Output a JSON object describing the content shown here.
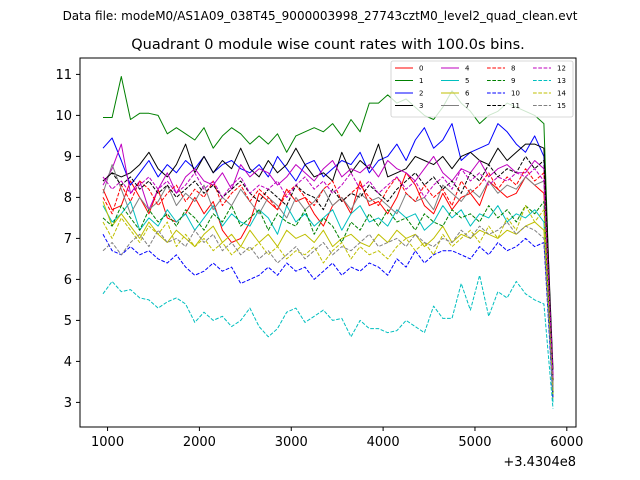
{
  "chart_data": {
    "type": "line",
    "suptitle": "Data file: modeM0/AS1A09_038T45_9000003998_27743cztM0_level2_quad_clean.evt",
    "title": "Quadrant 0 module wise count rates with 100.0s bins.",
    "xlabel": "",
    "ylabel": "",
    "x_offset_label": "+3.4304e8",
    "xlim": [
      700,
      6100
    ],
    "ylim": [
      2.4,
      11.4
    ],
    "xticks": [
      1000,
      2000,
      3000,
      4000,
      5000,
      6000
    ],
    "xtick_labels": [
      "1000",
      "2000",
      "3000",
      "4000",
      "5000",
      "6000"
    ],
    "yticks": [
      3,
      4,
      5,
      6,
      7,
      8,
      9,
      10,
      11
    ],
    "ytick_labels": [
      "3",
      "4",
      "5",
      "6",
      "7",
      "8",
      "9",
      "10",
      "11"
    ],
    "legend_position": "top-right",
    "x": [
      950,
      1050,
      1150,
      1250,
      1350,
      1450,
      1550,
      1650,
      1750,
      1850,
      1950,
      2050,
      2150,
      2250,
      2350,
      2450,
      2550,
      2650,
      2750,
      2850,
      2950,
      3050,
      3150,
      3250,
      3350,
      3450,
      3550,
      3650,
      3750,
      3850,
      3950,
      4050,
      4150,
      4250,
      4350,
      4450,
      4550,
      4650,
      4750,
      4850,
      4950,
      5050,
      5150,
      5250,
      5350,
      5450,
      5550,
      5650,
      5750,
      5850
    ],
    "series": [
      {
        "name": "0",
        "color": "#ff0000",
        "dash": "solid",
        "values": [
          8.2,
          7.7,
          7.8,
          8.4,
          8.0,
          7.6,
          8.2,
          7.5,
          7.4,
          7.6,
          8.0,
          7.6,
          7.9,
          7.2,
          6.9,
          7.0,
          7.4,
          8.1,
          7.9,
          7.7,
          8.2,
          7.9,
          8.0,
          7.6,
          7.3,
          7.8,
          8.0,
          7.6,
          8.4,
          7.8,
          7.9,
          7.6,
          8.0,
          8.6,
          8.3,
          7.8,
          7.6,
          8.1,
          7.7,
          8.0,
          8.1,
          7.8,
          8.4,
          8.2,
          8.0,
          8.1,
          8.5,
          8.3,
          8.1,
          3.4
        ]
      },
      {
        "name": "1",
        "color": "#008000",
        "dash": "solid",
        "values": [
          9.95,
          9.95,
          10.95,
          9.9,
          10.05,
          10.05,
          10.0,
          9.55,
          9.7,
          9.55,
          9.4,
          9.7,
          9.2,
          9.5,
          9.7,
          9.55,
          9.3,
          9.5,
          9.3,
          9.55,
          9.1,
          9.5,
          9.6,
          9.7,
          9.6,
          9.8,
          9.5,
          9.9,
          9.6,
          10.3,
          10.3,
          10.5,
          10.3,
          10.4,
          10.2,
          10.0,
          9.9,
          10.2,
          10.6,
          10.3,
          10.1,
          9.8,
          10.0,
          10.1,
          10.3,
          10.2,
          10.1,
          10.0,
          9.8,
          3.2
        ]
      },
      {
        "name": "2",
        "color": "#0000ff",
        "dash": "solid",
        "values": [
          9.2,
          9.45,
          8.9,
          8.3,
          8.6,
          8.9,
          8.5,
          8.8,
          8.6,
          8.9,
          8.7,
          9.0,
          8.6,
          8.8,
          8.9,
          8.7,
          8.6,
          8.8,
          8.5,
          9.0,
          8.7,
          8.4,
          8.8,
          8.9,
          8.5,
          8.7,
          8.9,
          8.8,
          9.1,
          8.6,
          8.9,
          9.0,
          9.3,
          8.9,
          9.4,
          9.7,
          9.2,
          9.4,
          9.8,
          8.9,
          9.1,
          9.2,
          9.3,
          9.8,
          9.6,
          9.3,
          9.1,
          9.5,
          9.0,
          3.6
        ]
      },
      {
        "name": "3",
        "color": "#000000",
        "dash": "solid",
        "values": [
          8.4,
          8.6,
          8.5,
          8.6,
          8.8,
          9.1,
          8.7,
          8.5,
          8.8,
          9.3,
          8.6,
          9.0,
          8.6,
          8.9,
          8.7,
          9.2,
          8.7,
          8.5,
          8.9,
          8.6,
          8.8,
          9.2,
          8.8,
          8.5,
          8.6,
          8.4,
          9.1,
          8.6,
          8.9,
          8.7,
          9.3,
          8.5,
          8.6,
          8.7,
          9.0,
          8.9,
          8.8,
          9.0,
          8.7,
          9.0,
          9.1,
          8.9,
          8.8,
          9.2,
          8.9,
          9.1,
          9.3,
          9.3,
          9.2,
          3.8
        ]
      },
      {
        "name": "4",
        "color": "#bf00bf",
        "dash": "solid",
        "values": [
          8.3,
          8.7,
          9.3,
          8.1,
          8.4,
          7.7,
          8.2,
          8.6,
          8.1,
          8.5,
          8.7,
          8.4,
          8.3,
          8.6,
          8.2,
          8.8,
          8.5,
          8.7,
          8.6,
          8.3,
          8.5,
          8.8,
          8.6,
          8.4,
          8.7,
          8.9,
          8.5,
          8.7,
          8.6,
          8.8,
          8.5,
          8.9,
          8.7,
          8.6,
          8.4,
          8.7,
          9.0,
          8.6,
          8.4,
          8.7,
          8.6,
          8.9,
          8.5,
          8.7,
          8.8,
          8.6,
          8.6,
          8.9,
          8.7,
          3.6
        ]
      },
      {
        "name": "5",
        "color": "#00bfbf",
        "dash": "solid",
        "values": [
          7.8,
          7.4,
          7.6,
          7.9,
          7.2,
          7.5,
          7.3,
          7.7,
          7.4,
          7.6,
          7.2,
          7.5,
          7.8,
          7.3,
          7.6,
          7.4,
          7.3,
          7.7,
          7.5,
          7.1,
          7.8,
          7.4,
          7.6,
          7.3,
          7.5,
          7.7,
          7.2,
          7.6,
          7.8,
          7.4,
          7.5,
          7.3,
          7.7,
          7.5,
          7.6,
          7.2,
          7.4,
          7.8,
          7.5,
          7.7,
          7.3,
          7.6,
          7.5,
          7.8,
          7.4,
          7.6,
          7.5,
          7.7,
          7.4,
          3.0
        ]
      },
      {
        "name": "6",
        "color": "#bfbf00",
        "dash": "solid",
        "values": [
          7.9,
          7.3,
          7.6,
          7.3,
          7.0,
          7.4,
          7.1,
          6.9,
          7.2,
          7.0,
          6.8,
          7.1,
          7.3,
          6.9,
          7.1,
          6.8,
          7.2,
          6.9,
          7.1,
          6.8,
          7.2,
          7.0,
          7.1,
          6.9,
          7.2,
          6.8,
          7.0,
          7.1,
          6.9,
          6.8,
          7.1,
          6.9,
          7.2,
          7.0,
          7.1,
          6.8,
          7.0,
          7.3,
          6.9,
          7.1,
          7.0,
          7.2,
          7.1,
          7.0,
          7.2,
          7.1,
          7.3,
          7.4,
          7.2,
          3.1
        ]
      },
      {
        "name": "7",
        "color": "#808080",
        "dash": "solid",
        "values": [
          8.1,
          8.8,
          8.2,
          7.6,
          8.0,
          7.7,
          7.9,
          8.3,
          7.8,
          8.1,
          7.9,
          8.3,
          7.7,
          8.0,
          7.8,
          8.2,
          7.9,
          7.6,
          8.0,
          7.8,
          7.5,
          8.0,
          7.7,
          7.9,
          8.2,
          7.8,
          8.0,
          7.7,
          8.1,
          7.9,
          8.0,
          7.8,
          7.6,
          8.1,
          7.9,
          8.0,
          7.7,
          8.3,
          8.1,
          7.9,
          8.2,
          8.0,
          8.4,
          8.1,
          8.3,
          8.2,
          8.5,
          8.3,
          8.4,
          3.4
        ]
      },
      {
        "name": "8",
        "color": "#ff0000",
        "dash": "dashed",
        "values": [
          8.0,
          7.6,
          8.3,
          7.9,
          8.4,
          8.2,
          7.8,
          8.1,
          8.3,
          7.9,
          8.2,
          8.0,
          8.4,
          7.8,
          8.1,
          8.3,
          7.9,
          8.2,
          8.0,
          7.7,
          8.1,
          8.3,
          8.0,
          7.8,
          8.2,
          8.4,
          7.9,
          8.1,
          8.3,
          8.0,
          7.8,
          8.2,
          8.5,
          8.1,
          7.9,
          8.3,
          8.0,
          8.2,
          7.8,
          8.4,
          8.1,
          8.3,
          8.6,
          8.2,
          8.5,
          8.3,
          8.7,
          8.4,
          8.6,
          3.5
        ]
      },
      {
        "name": "9",
        "color": "#008000",
        "dash": "dashed",
        "values": [
          7.5,
          7.3,
          7.8,
          7.5,
          7.2,
          7.7,
          7.4,
          7.6,
          7.3,
          7.7,
          7.5,
          7.2,
          7.6,
          7.4,
          7.8,
          7.3,
          7.5,
          7.7,
          7.2,
          7.6,
          7.4,
          7.3,
          7.7,
          7.1,
          7.5,
          7.3,
          6.9,
          7.4,
          7.2,
          7.6,
          7.3,
          7.7,
          7.4,
          7.5,
          7.2,
          7.6,
          7.4,
          7.3,
          7.7,
          7.5,
          7.6,
          7.4,
          7.8,
          7.5,
          7.7,
          7.4,
          7.8,
          7.6,
          7.9,
          3.2
        ]
      },
      {
        "name": "10",
        "color": "#0000ff",
        "dash": "dashed",
        "values": [
          7.1,
          6.7,
          6.6,
          6.8,
          6.6,
          6.7,
          6.5,
          6.4,
          6.6,
          6.3,
          6.1,
          6.2,
          6.4,
          6.2,
          6.3,
          5.9,
          6.0,
          6.1,
          6.3,
          6.1,
          6.4,
          6.2,
          6.3,
          6.0,
          6.2,
          6.4,
          6.1,
          6.3,
          6.2,
          6.4,
          6.3,
          6.1,
          6.5,
          6.3,
          6.7,
          6.4,
          6.6,
          6.7,
          6.7,
          6.6,
          6.5,
          6.8,
          6.6,
          6.9,
          6.7,
          6.8,
          7.0,
          6.8,
          6.9,
          3.1
        ]
      },
      {
        "name": "11",
        "color": "#000000",
        "dash": "dashed",
        "values": [
          8.4,
          8.6,
          8.3,
          8.5,
          8.2,
          8.4,
          8.1,
          8.3,
          8.0,
          8.2,
          8.4,
          8.1,
          8.3,
          8.0,
          8.2,
          8.4,
          8.1,
          7.9,
          8.2,
          8.0,
          7.8,
          8.3,
          8.1,
          8.0,
          7.7,
          8.2,
          7.9,
          8.1,
          8.0,
          8.3,
          8.1,
          7.9,
          8.2,
          8.4,
          8.6,
          8.3,
          8.5,
          8.2,
          8.4,
          8.1,
          8.6,
          8.4,
          8.8,
          8.5,
          8.7,
          8.6,
          9.0,
          8.7,
          8.9,
          3.5
        ]
      },
      {
        "name": "12",
        "color": "#bf00bf",
        "dash": "dashed",
        "values": [
          8.5,
          8.2,
          8.4,
          8.1,
          8.3,
          8.5,
          8.2,
          8.4,
          8.1,
          8.3,
          8.6,
          8.2,
          8.4,
          8.0,
          8.3,
          8.5,
          8.1,
          8.3,
          8.2,
          8.4,
          8.0,
          8.3,
          8.5,
          8.2,
          8.4,
          8.1,
          8.3,
          8.6,
          8.2,
          8.4,
          8.1,
          8.3,
          8.5,
          8.2,
          8.4,
          8.0,
          8.3,
          8.5,
          8.2,
          8.7,
          8.4,
          8.6,
          8.3,
          8.5,
          8.4,
          8.6,
          8.5,
          8.7,
          8.4,
          3.6
        ]
      },
      {
        "name": "13",
        "color": "#00bfbf",
        "dash": "dashed",
        "values": [
          5.65,
          5.95,
          5.7,
          5.75,
          5.55,
          5.5,
          5.3,
          5.45,
          5.55,
          5.4,
          4.95,
          5.2,
          5.0,
          5.1,
          4.85,
          5.0,
          5.3,
          4.85,
          4.6,
          4.8,
          5.2,
          5.3,
          4.95,
          5.1,
          5.25,
          5.0,
          5.05,
          4.6,
          5.0,
          4.8,
          4.8,
          4.7,
          4.75,
          5.0,
          4.85,
          4.7,
          5.35,
          5.05,
          5.05,
          5.9,
          5.25,
          6.1,
          5.1,
          5.7,
          5.55,
          5.95,
          5.65,
          5.5,
          5.4,
          2.85
        ]
      },
      {
        "name": "14",
        "color": "#bfbf00",
        "dash": "dashed",
        "values": [
          7.4,
          7.0,
          7.5,
          7.2,
          6.9,
          7.3,
          7.1,
          7.4,
          6.8,
          7.1,
          6.8,
          7.0,
          6.7,
          6.9,
          6.6,
          6.8,
          6.7,
          6.9,
          6.6,
          6.8,
          6.5,
          6.7,
          6.6,
          6.8,
          6.4,
          6.7,
          6.9,
          6.5,
          6.8,
          6.6,
          6.7,
          6.5,
          6.8,
          7.0,
          6.7,
          6.9,
          6.6,
          7.1,
          6.8,
          7.0,
          7.2,
          6.9,
          7.3,
          7.0,
          7.5,
          7.2,
          7.8,
          7.4,
          7.7,
          3.2
        ]
      },
      {
        "name": "15",
        "color": "#808080",
        "dash": "dashed",
        "values": [
          6.7,
          6.9,
          6.6,
          6.9,
          7.1,
          6.8,
          7.2,
          6.9,
          7.0,
          6.8,
          7.2,
          6.9,
          7.1,
          6.7,
          6.9,
          6.6,
          6.8,
          6.5,
          6.7,
          6.4,
          6.6,
          6.8,
          6.5,
          6.7,
          6.9,
          6.6,
          6.8,
          6.7,
          6.9,
          7.1,
          6.8,
          6.9,
          7.0,
          6.8,
          7.1,
          6.9,
          6.8,
          7.0,
          6.9,
          7.2,
          7.0,
          7.3,
          7.1,
          7.2,
          7.4,
          7.1,
          7.3,
          7.2,
          7.0,
          3.3
        ]
      }
    ]
  }
}
